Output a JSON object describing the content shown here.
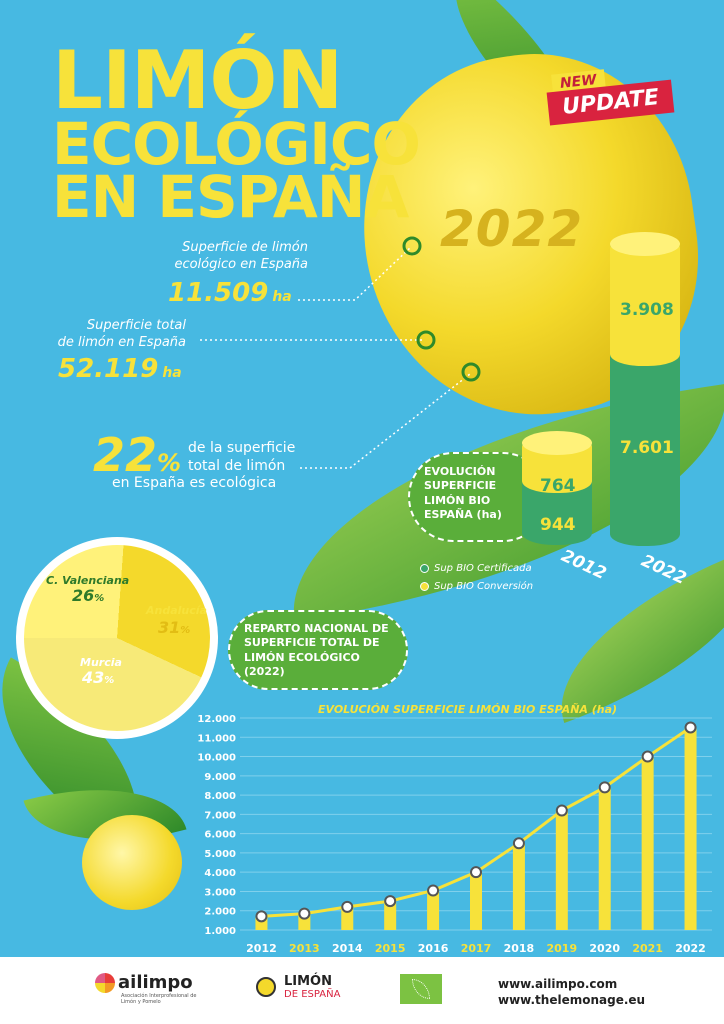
{
  "title": {
    "line1": "LIMÓN",
    "line2": "ECOLÓGICO",
    "line3": "EN ESPAÑA"
  },
  "badge": {
    "new": "NEW",
    "update": "UPDATE"
  },
  "year_label": "2022",
  "stats": {
    "eco_label1": "Superficie de limón",
    "eco_label2": "ecológico en España",
    "eco_value": "11.509",
    "eco_unit": "ha",
    "total_label1": "Superficie total",
    "total_label2": "de limón en España",
    "total_value": "52.119",
    "total_unit": "ha",
    "pct_value": "22",
    "pct_sign": "%",
    "pct_desc1": "de la superficie",
    "pct_desc2": "total de limón",
    "pct_desc3": "en España es ecológica"
  },
  "evolution_box": {
    "title": "EVOLUCIÓN SUPERFICIE LIMÓN BIO ESPAÑA (ha)"
  },
  "cylinders": [
    {
      "year": "2012",
      "certificada": "944",
      "conversion": "764"
    },
    {
      "year": "2022",
      "certificada": "7.601",
      "conversion": "3.908"
    }
  ],
  "legend": {
    "certificada": "Sup BIO Certificada",
    "conversion": "Sup BIO Conversión"
  },
  "colors": {
    "certificada": "#3aa66a",
    "conversion": "#f7e23a",
    "yellow": "#f7e23a",
    "green": "#5aae3a",
    "line": "#f7e23a"
  },
  "pie": {
    "segments": [
      {
        "name": "C. Valenciana",
        "value": "26",
        "unit": "%"
      },
      {
        "name": "Andalucía",
        "value": "31",
        "unit": "%"
      },
      {
        "name": "Murcia",
        "value": "43",
        "unit": "%"
      }
    ]
  },
  "reparto_box": {
    "title": "REPARTO NACIONAL DE SUPERFICIE TOTAL DE LIMÓN ECOLÓGICO (2022)"
  },
  "chart_data": {
    "type": "bar",
    "title": "EVOLUCIÓN SUPERFICIE LIMÓN BIO ESPAÑA (ha)",
    "categories": [
      "2012",
      "2013",
      "2014",
      "2015",
      "2016",
      "2017",
      "2018",
      "2019",
      "2020",
      "2021",
      "2022"
    ],
    "values": [
      1708,
      1850,
      2200,
      2500,
      3050,
      4000,
      5500,
      7200,
      8400,
      10000,
      11509
    ],
    "ylim": [
      1000,
      12000
    ],
    "yticks": [
      "1.000",
      "2.000",
      "3.000",
      "4.000",
      "5.000",
      "6.000",
      "7.000",
      "8.000",
      "9.000",
      "10.000",
      "11.000",
      "12.000"
    ],
    "grid": true
  },
  "footer": {
    "ailimpo_name": "ailimpo",
    "ailimpo_sub": "Asociación Interprofesional de Limón y Pomelo",
    "limon_t1": "LIMÓN",
    "limon_t2": "DE ESPAÑA",
    "url1": "www.ailimpo.com",
    "url2": "www.thelemonage.eu"
  }
}
